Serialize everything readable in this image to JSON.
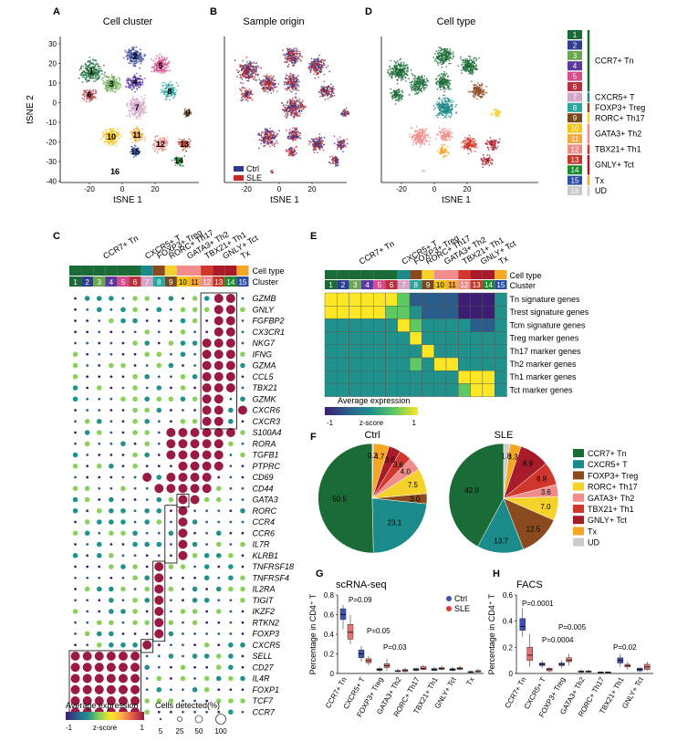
{
  "colors": {
    "clusters": [
      "#1a6b35",
      "#2f3f8f",
      "#6aa84f",
      "#5a3aa0",
      "#d94c8a",
      "#b8323e",
      "#d4a5c9",
      "#2aa6a0",
      "#7a4a1e",
      "#f0c419",
      "#f2a83a",
      "#e98b86",
      "#c0392b",
      "#1e8a2e",
      "#2c4fa3",
      "#c9c9c9"
    ],
    "group": {
      "Tn": "#1a6b35",
      "CXCR5": "#1a8a8a",
      "Treg": "#8b4a1e",
      "Th17": "#f5d22a",
      "Th2": "#f08c8c",
      "Th1": "#d0362b",
      "Tct": "#a81c2a",
      "Tx": "#f5a623",
      "UD": "#cccccc"
    },
    "ctrl": "#2d3a8c",
    "sle": "#c62828"
  },
  "panelA": {
    "letter": "A",
    "title": "Cell cluster",
    "xlabel": "tSNE 1",
    "ylabel": "tSNE 2",
    "xticks": [
      "-20",
      "0",
      "20"
    ],
    "yticks": [
      "30",
      "20",
      "10",
      "0",
      "-10",
      "-20",
      "-30",
      "-40"
    ],
    "labels": [
      "1",
      "2",
      "3",
      "4",
      "5",
      "6",
      "7",
      "8",
      "9",
      "10",
      "11",
      "12",
      "13",
      "14",
      "15",
      "16"
    ]
  },
  "panelB": {
    "letter": "B",
    "title": "Sample origin",
    "xlabel": "tSNE 1",
    "xticks": [
      "-20",
      "0",
      "20"
    ],
    "legend": [
      "Ctrl",
      "SLE"
    ]
  },
  "panelD": {
    "letter": "D",
    "title": "Cell type",
    "xlabel": "tSNE 1",
    "xticks": [
      "-20",
      "0",
      "20"
    ]
  },
  "celltypeLegend": {
    "numbers": [
      "1",
      "2",
      "3",
      "4",
      "5",
      "6",
      "7",
      "8",
      "9",
      "10",
      "11",
      "12",
      "13",
      "14",
      "15",
      "16"
    ],
    "groups": [
      "CCR7+ Tn",
      "CXCR5+ T",
      "FOXP3+ Treg",
      "RORC+ Th17",
      "GATA3+ Th2",
      "TBX21+ Th1",
      "GNLY+ Tct",
      "Tx",
      "UD"
    ]
  },
  "panelC": {
    "letter": "C",
    "groupLabels": [
      "CCR7+ Tn",
      "CXCR5+ T",
      "FOXP3+ Treg",
      "RORC+ Th17",
      "GATA3+ Th2",
      "TBX21+ Th1",
      "GNLY+ Tct",
      "Tx"
    ],
    "rowLabels": [
      "Cell type",
      "Cluster"
    ],
    "genes": [
      "GZMB",
      "GNLY",
      "FGFBP2",
      "CX3CR1",
      "NKG7",
      "IFNG",
      "GZMA",
      "CCL5",
      "TBX21",
      "GZMK",
      "CXCR6",
      "CXCR3",
      "S100A4",
      "RORA",
      "TGFB1",
      "PTPRC",
      "CD69",
      "CD44",
      "GATA3",
      "RORC",
      "CCR4",
      "CCR6",
      "IL7R",
      "KLRB1",
      "TNFRSF18",
      "TNFRSF4",
      "IL2RA",
      "TIGIT",
      "IKZF2",
      "RTKN2",
      "FOXP3",
      "CXCR5",
      "SELL",
      "CD27",
      "IL4R",
      "FOXP1",
      "TCF7",
      "CCR7"
    ],
    "avgLegend": {
      "title": "Average expression",
      "min": "-1",
      "mid": "z-score",
      "max": "1"
    },
    "sizeLegend": {
      "title": "Cells detected(%)",
      "values": [
        "5",
        "25",
        "50",
        "100"
      ]
    }
  },
  "panelE": {
    "letter": "E",
    "groupLabels": [
      "CCR7+ Tn",
      "CXCR5+ T",
      "FOXP3+ Treg",
      "RORC+ Th17",
      "GATA3+ Th2",
      "TBX21+ Th1",
      "GNLY+ Tct",
      "Tx"
    ],
    "rowLabels": [
      "Cell type",
      "Cluster"
    ],
    "rows": [
      "Tn signature genes",
      "Trest signature genes",
      "Tcm signature genes",
      "Treg marker genes",
      "Th17 marker genes",
      "Th2 marker genes",
      "Th1 marker genes",
      "Tct marker genes"
    ],
    "legend": {
      "title": "Average expression",
      "min": "-1",
      "mid": "z-score",
      "max": "1"
    }
  },
  "panelF": {
    "letter": "F",
    "pies": [
      {
        "title": "Ctrl",
        "values": [
          50.5,
          23.1,
          3.0,
          7.5,
          4.0,
          3.6,
          3.6,
          4.7,
          0.3
        ],
        "labels": [
          "50.5",
          "23.1",
          "3.0",
          "7.5",
          "4.0",
          "3.6",
          "3.6",
          "4.7",
          "0.3"
        ]
      },
      {
        "title": "SLE",
        "values": [
          42.0,
          13.7,
          12.5,
          7.0,
          3.6,
          6.8,
          8.9,
          3.3,
          1.8
        ],
        "labels": [
          "42.0",
          "13.7",
          "12.5",
          "7.0",
          "3.6",
          "6.8",
          "8.9",
          "3.3",
          "1.8"
        ]
      }
    ],
    "legend": [
      "CCR7+ Tn",
      "CXCR5+ T",
      "FOXP3+ Treg",
      "RORC+ Th17",
      "GATA3+ Th2",
      "TBX21+ Th1",
      "GNLY+ Tct",
      "Tx",
      "UD"
    ]
  },
  "panelG": {
    "letter": "G",
    "title": "scRNA-seq",
    "ylabel": "Percentage in CD4⁺ T",
    "yticks": [
      "0.8",
      "0.6",
      "0.4",
      "0.2",
      "0"
    ],
    "categories": [
      "CCR7+ Tn",
      "CXCR5+ T",
      "FOXP3+ Treg",
      "GATA3+ Th2",
      "RORC+ Th17",
      "TBX21+ Th1",
      "GNLY+ Tct",
      "Tx"
    ],
    "pvalues": [
      "P=0.09",
      "P=0.05",
      "P=0.03"
    ],
    "legend": [
      "Ctrl",
      "SLE"
    ]
  },
  "panelH": {
    "letter": "H",
    "title": "FACS",
    "ylabel": "Percentage in CD4⁺ T",
    "yticks": [
      "0.6",
      "0.4",
      "0.2",
      "0"
    ],
    "categories": [
      "CCR7+ Tn",
      "CXCR5+ T",
      "FOXP3+ Treg",
      "GATA3+ Th2",
      "RORC+ Th17",
      "TBX21+ Th1",
      "GNLY+ Tct"
    ],
    "pvalues": [
      "P=0.0001",
      "P=0.0004",
      "P=0.005",
      "P=0.02"
    ]
  }
}
